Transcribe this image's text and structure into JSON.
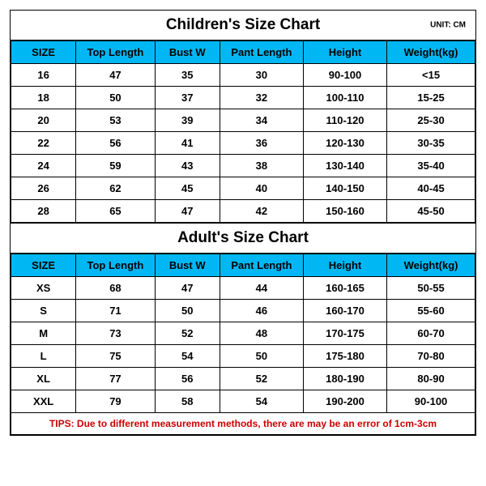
{
  "header_bg": "#00b7f4",
  "children": {
    "title": "Children's Size Chart",
    "unit": "UNIT: CM",
    "columns": [
      "SIZE",
      "Top Length",
      "Bust W",
      "Pant Length",
      "Height",
      "Weight(kg)"
    ],
    "rows": [
      [
        "16",
        "47",
        "35",
        "30",
        "90-100",
        "<15"
      ],
      [
        "18",
        "50",
        "37",
        "32",
        "100-110",
        "15-25"
      ],
      [
        "20",
        "53",
        "39",
        "34",
        "110-120",
        "25-30"
      ],
      [
        "22",
        "56",
        "41",
        "36",
        "120-130",
        "30-35"
      ],
      [
        "24",
        "59",
        "43",
        "38",
        "130-140",
        "35-40"
      ],
      [
        "26",
        "62",
        "45",
        "40",
        "140-150",
        "40-45"
      ],
      [
        "28",
        "65",
        "47",
        "42",
        "150-160",
        "45-50"
      ]
    ]
  },
  "adult": {
    "title": "Adult's Size Chart",
    "columns": [
      "SIZE",
      "Top Length",
      "Bust W",
      "Pant Length",
      "Height",
      "Weight(kg)"
    ],
    "rows": [
      [
        "XS",
        "68",
        "47",
        "44",
        "160-165",
        "50-55"
      ],
      [
        "S",
        "71",
        "50",
        "46",
        "160-170",
        "55-60"
      ],
      [
        "M",
        "73",
        "52",
        "48",
        "170-175",
        "60-70"
      ],
      [
        "L",
        "75",
        "54",
        "50",
        "175-180",
        "70-80"
      ],
      [
        "XL",
        "77",
        "56",
        "52",
        "180-190",
        "80-90"
      ],
      [
        "XXL",
        "79",
        "58",
        "54",
        "190-200",
        "90-100"
      ]
    ],
    "tips": "TIPS: Due to different measurement methods, there are may be an error of 1cm-3cm"
  }
}
